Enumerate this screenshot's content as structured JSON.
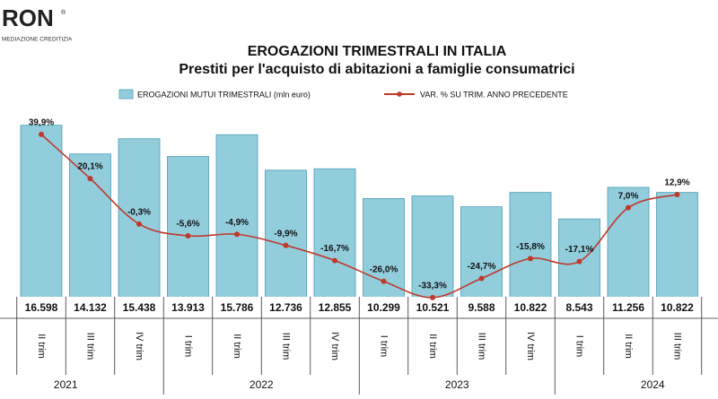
{
  "logo": {
    "name": "RON",
    "tagline": "MEDIAZIONE CREDITIZIA"
  },
  "chart_data": {
    "type": "bar_line",
    "title": "EROGAZIONI TRIMESTRALI IN ITALIA",
    "subtitle": "Prestiti per l'acquisto di abitazioni a famiglie consumatrici",
    "categories": [
      "II trim",
      "III trim",
      "IV trim",
      "I trim",
      "II trim",
      "III trim",
      "IV trim",
      "I trim",
      "II trim",
      "III trim",
      "IV trim",
      "I trim",
      "II trim",
      "III trim"
    ],
    "years": [
      "2021",
      "2022",
      "2023",
      "2024"
    ],
    "ylim": [
      0,
      17500
    ],
    "y2lim": [
      -42.6,
      48.7
    ],
    "series": [
      {
        "name": "EROGAZIONI MUTUI TRIMESTRALI (mln euro)",
        "type": "bar",
        "color": "#92cddc",
        "values": [
          16598,
          14132,
          15438,
          13913,
          15786,
          12736,
          12855,
          10299,
          10521,
          9588,
          10822,
          8543,
          11256,
          10822
        ],
        "value_labels": [
          "16.598",
          "14.132",
          "15.438",
          "13.913",
          "15.786",
          "12.736",
          "12.855",
          "10.299",
          "10.521",
          "9.588",
          "10.822",
          "8.543",
          "11.256",
          "10.822"
        ]
      },
      {
        "name": "VAR. % SU TRIM. ANNO PRECEDENTE",
        "type": "line",
        "axis": "y2",
        "color": "#c0392b",
        "values": [
          39.9,
          20.1,
          -0.3,
          -5.6,
          -4.9,
          -9.9,
          -16.7,
          -26.0,
          -33.3,
          -24.7,
          -15.8,
          -17.1,
          7.0,
          12.9
        ],
        "value_labels": [
          "39,9%",
          "20,1%",
          "-0,3%",
          "-5,6%",
          "-4,9%",
          "-9,9%",
          "-16,7%",
          "-26,0%",
          "-33,3%",
          "-24,7%",
          "-15,8%",
          "-17,1%",
          "7,0%",
          "12,9%"
        ]
      }
    ]
  }
}
